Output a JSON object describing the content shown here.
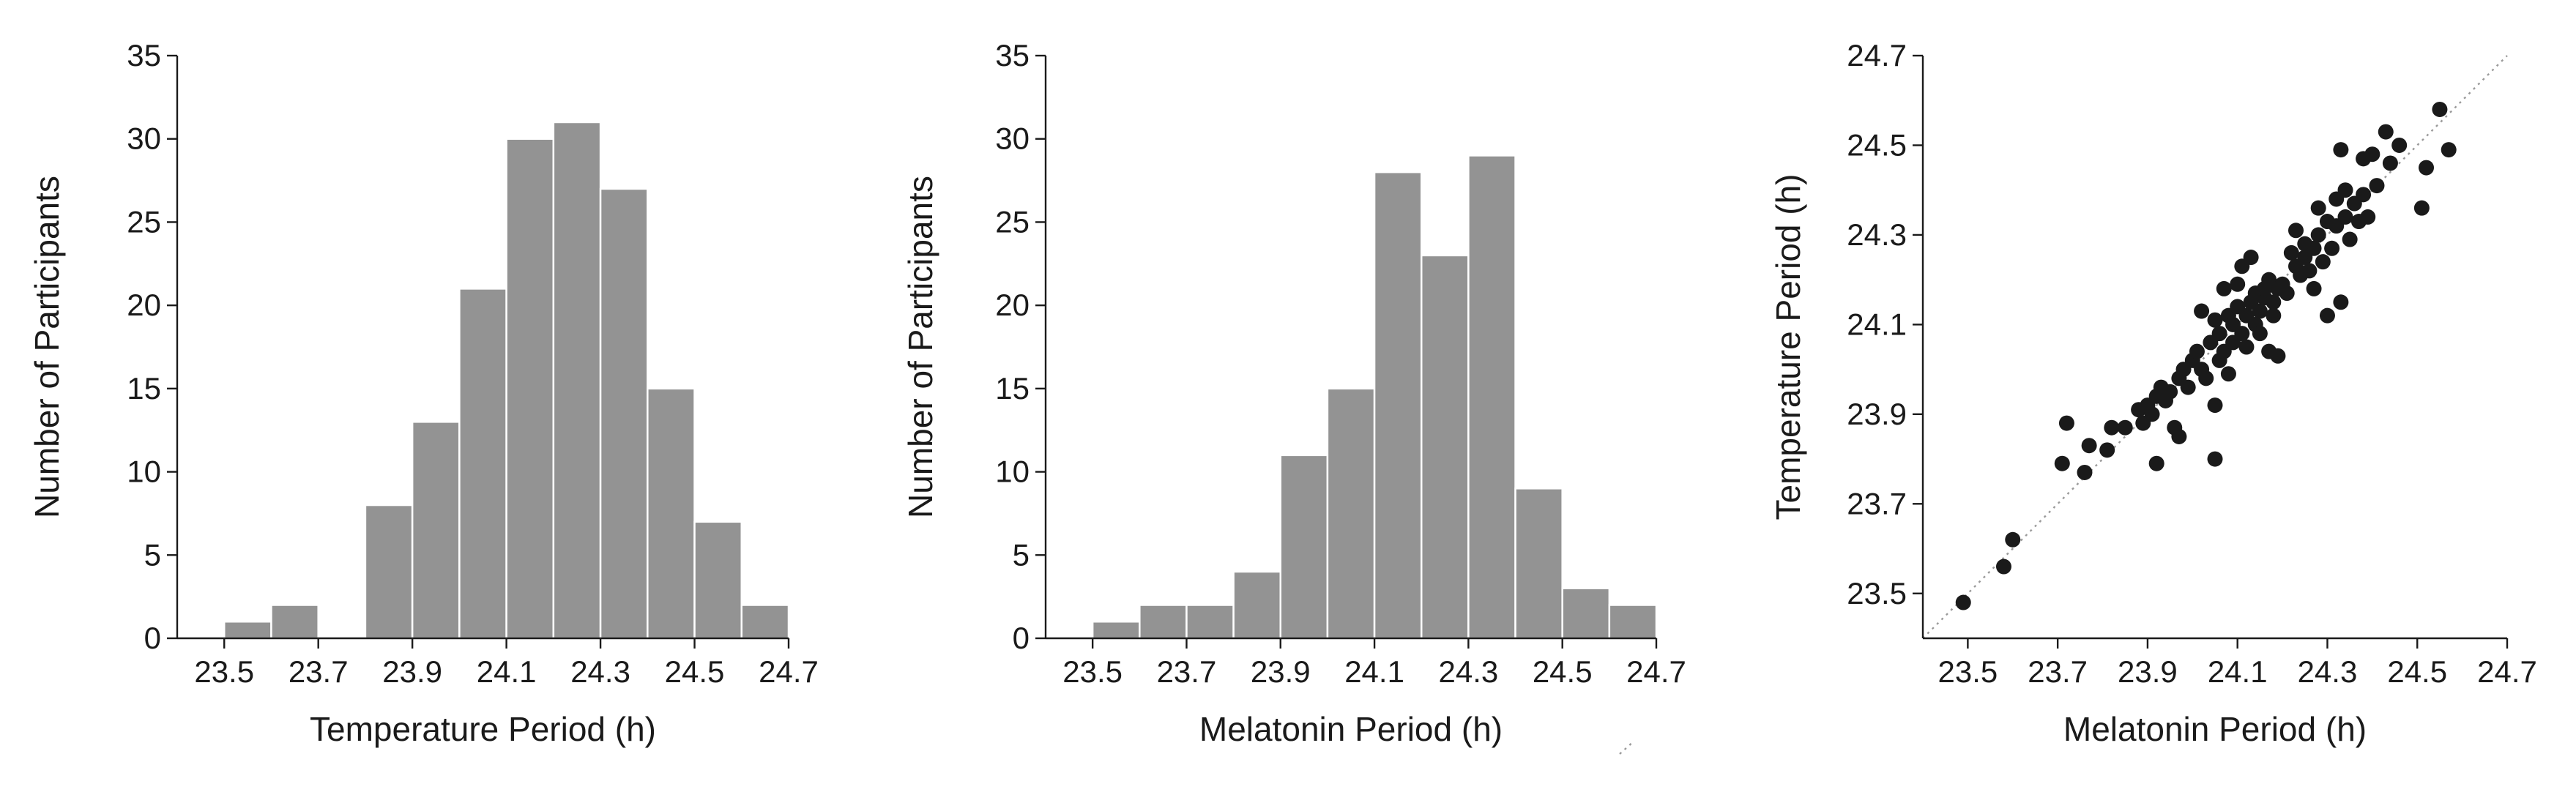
{
  "chart_data": [
    {
      "type": "bar",
      "bin_width": 0.1,
      "bin_starts": [
        23.5,
        23.6,
        23.7,
        23.8,
        23.9,
        24.0,
        24.1,
        24.2,
        24.3,
        24.4,
        24.5,
        24.6
      ],
      "values": [
        1,
        2,
        0,
        8,
        13,
        21,
        30,
        31,
        27,
        15,
        7,
        2
      ],
      "xlabel": "Temperature Period (h)",
      "ylabel": "Number of Participants",
      "xlim": [
        23.4,
        24.7
      ],
      "ylim": [
        0,
        35
      ],
      "xticks": [
        "23.5",
        "23.7",
        "23.9",
        "24.1",
        "24.3",
        "24.5",
        "24.7"
      ],
      "yticks": [
        "0",
        "5",
        "10",
        "15",
        "20",
        "25",
        "30",
        "35"
      ],
      "bar_color": "#939393",
      "grid": false
    },
    {
      "type": "bar",
      "bin_width": 0.1,
      "bin_starts": [
        23.5,
        23.6,
        23.7,
        23.8,
        23.9,
        24.0,
        24.1,
        24.2,
        24.3,
        24.4,
        24.5,
        24.6
      ],
      "values": [
        1,
        2,
        2,
        4,
        11,
        15,
        28,
        23,
        29,
        9,
        3,
        2
      ],
      "xlabel": "Melatonin Period (h)",
      "ylabel": "Number of Participants",
      "xlim": [
        23.4,
        24.7
      ],
      "ylim": [
        0,
        35
      ],
      "xticks": [
        "23.5",
        "23.7",
        "23.9",
        "24.1",
        "24.3",
        "24.5",
        "24.7"
      ],
      "yticks": [
        "0",
        "5",
        "10",
        "15",
        "20",
        "25",
        "30",
        "35"
      ],
      "bar_color": "#939393",
      "grid": false
    },
    {
      "type": "scatter",
      "xlabel": "Melatonin Period (h)",
      "ylabel": "Temperature Period (h)",
      "xlim": [
        23.4,
        24.7
      ],
      "ylim": [
        23.4,
        24.7
      ],
      "xticks": [
        "23.5",
        "23.7",
        "23.9",
        "24.1",
        "24.3",
        "24.5",
        "24.7"
      ],
      "yticks": [
        "23.5",
        "23.7",
        "23.9",
        "24.1",
        "24.3",
        "24.5",
        "24.7"
      ],
      "reference_line": "identity (y = x), dotted",
      "point_color": "#1a1a1a",
      "grid": false,
      "points": [
        [
          23.49,
          23.48
        ],
        [
          23.58,
          23.56
        ],
        [
          23.6,
          23.62
        ],
        [
          23.71,
          23.79
        ],
        [
          23.72,
          23.88
        ],
        [
          23.76,
          23.77
        ],
        [
          23.77,
          23.83
        ],
        [
          23.81,
          23.82
        ],
        [
          23.82,
          23.87
        ],
        [
          23.85,
          23.87
        ],
        [
          23.88,
          23.91
        ],
        [
          23.89,
          23.88
        ],
        [
          23.9,
          23.92
        ],
        [
          23.91,
          23.9
        ],
        [
          23.92,
          23.79
        ],
        [
          23.92,
          23.94
        ],
        [
          23.93,
          23.96
        ],
        [
          23.94,
          23.93
        ],
        [
          23.95,
          23.95
        ],
        [
          23.96,
          23.87
        ],
        [
          23.97,
          23.85
        ],
        [
          23.97,
          23.98
        ],
        [
          23.98,
          24.0
        ],
        [
          23.99,
          23.96
        ],
        [
          24.0,
          24.02
        ],
        [
          24.01,
          24.04
        ],
        [
          24.02,
          24.0
        ],
        [
          24.02,
          24.13
        ],
        [
          24.03,
          23.98
        ],
        [
          24.04,
          24.06
        ],
        [
          24.05,
          23.8
        ],
        [
          24.05,
          23.92
        ],
        [
          24.05,
          24.11
        ],
        [
          24.06,
          24.08
        ],
        [
          24.06,
          24.02
        ],
        [
          24.07,
          24.04
        ],
        [
          24.07,
          24.18
        ],
        [
          24.08,
          24.12
        ],
        [
          24.08,
          23.99
        ],
        [
          24.09,
          24.1
        ],
        [
          24.09,
          24.06
        ],
        [
          24.1,
          24.14
        ],
        [
          24.1,
          24.19
        ],
        [
          24.11,
          24.08
        ],
        [
          24.11,
          24.23
        ],
        [
          24.12,
          24.12
        ],
        [
          24.12,
          24.05
        ],
        [
          24.13,
          24.15
        ],
        [
          24.13,
          24.25
        ],
        [
          24.14,
          24.1
        ],
        [
          24.14,
          24.17
        ],
        [
          24.15,
          24.13
        ],
        [
          24.15,
          24.08
        ],
        [
          24.16,
          24.16
        ],
        [
          24.16,
          24.18
        ],
        [
          24.17,
          24.04
        ],
        [
          24.17,
          24.2
        ],
        [
          24.18,
          24.15
        ],
        [
          24.18,
          24.12
        ],
        [
          24.19,
          24.03
        ],
        [
          24.19,
          24.18
        ],
        [
          24.2,
          24.19
        ],
        [
          24.21,
          24.17
        ],
        [
          24.22,
          24.26
        ],
        [
          24.23,
          24.23
        ],
        [
          24.23,
          24.31
        ],
        [
          24.24,
          24.21
        ],
        [
          24.25,
          24.25
        ],
        [
          24.25,
          24.28
        ],
        [
          24.26,
          24.22
        ],
        [
          24.27,
          24.18
        ],
        [
          24.27,
          24.27
        ],
        [
          24.28,
          24.3
        ],
        [
          24.28,
          24.36
        ],
        [
          24.29,
          24.24
        ],
        [
          24.3,
          24.12
        ],
        [
          24.3,
          24.33
        ],
        [
          24.31,
          24.27
        ],
        [
          24.32,
          24.32
        ],
        [
          24.32,
          24.38
        ],
        [
          24.33,
          24.15
        ],
        [
          24.33,
          24.49
        ],
        [
          24.34,
          24.34
        ],
        [
          24.34,
          24.4
        ],
        [
          24.35,
          24.29
        ],
        [
          24.36,
          24.37
        ],
        [
          24.37,
          24.33
        ],
        [
          24.38,
          24.47
        ],
        [
          24.38,
          24.39
        ],
        [
          24.39,
          24.34
        ],
        [
          24.4,
          24.48
        ],
        [
          24.41,
          24.41
        ],
        [
          24.43,
          24.53
        ],
        [
          24.44,
          24.46
        ],
        [
          24.46,
          24.5
        ],
        [
          24.51,
          24.36
        ],
        [
          24.52,
          24.45
        ],
        [
          24.55,
          24.58
        ],
        [
          24.57,
          24.49
        ]
      ]
    }
  ]
}
